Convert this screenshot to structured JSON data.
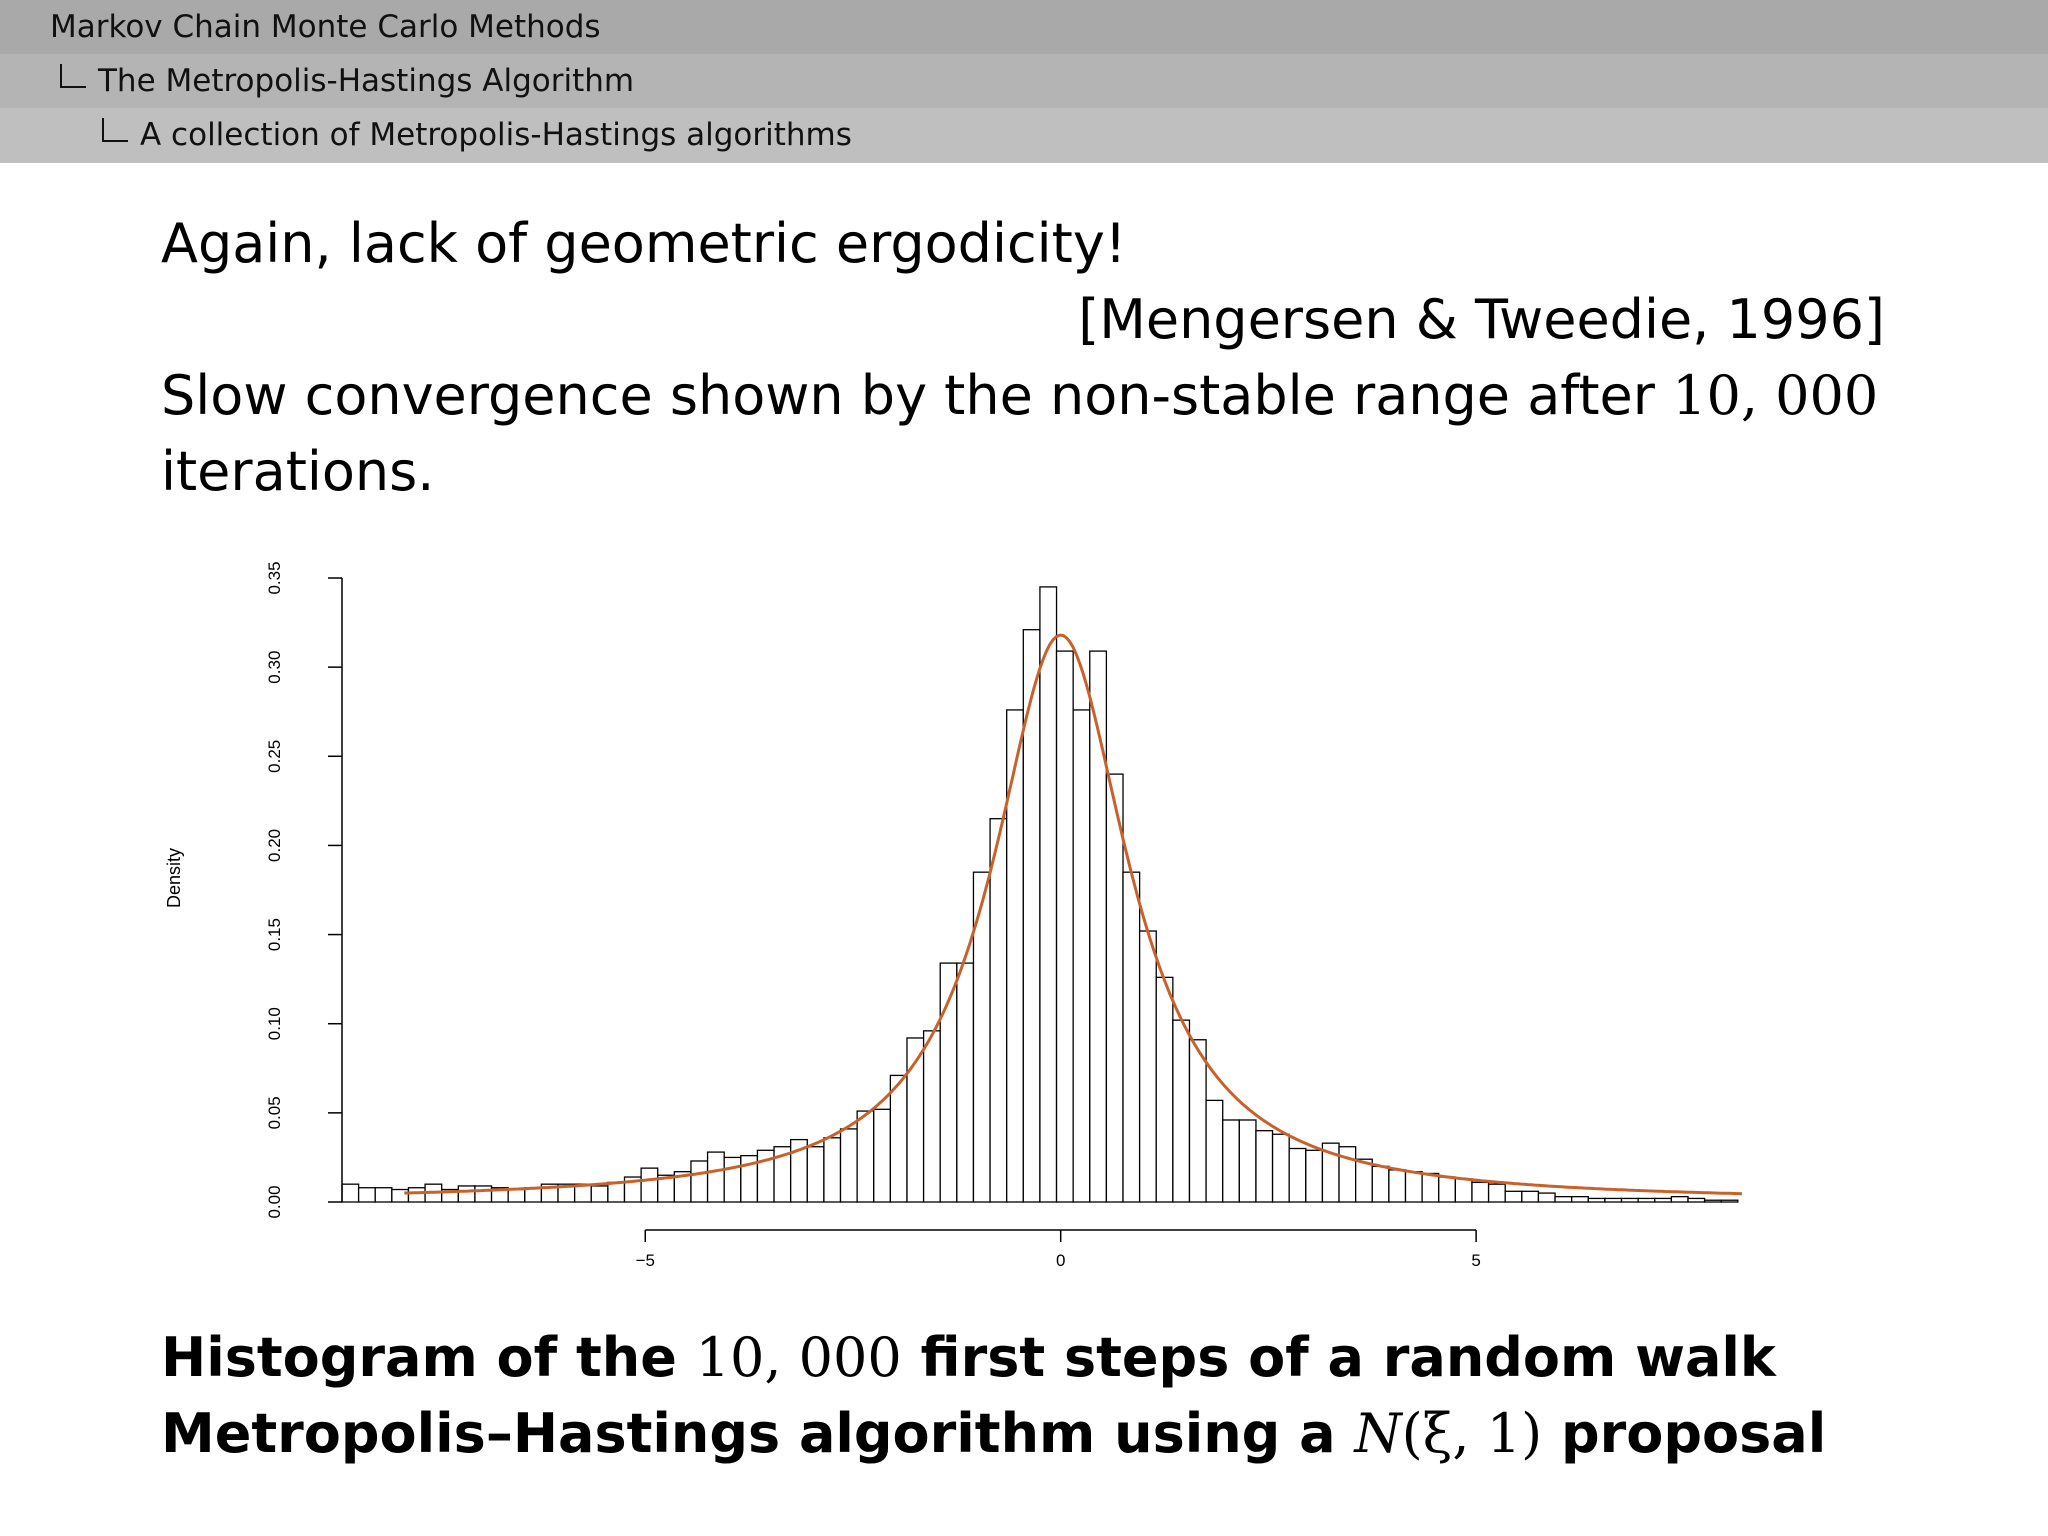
{
  "header": {
    "level1": "Markov Chain Monte Carlo Methods",
    "level2": "The Metropolis-Hastings Algorithm",
    "level3": "A collection of Metropolis-Hastings algorithms"
  },
  "body": {
    "line1": "Again, lack of geometric ergodicity!",
    "citation": "[Mengersen & Tweedie, 1996]",
    "line3_pre": "Slow convergence shown by the non-stable range after ",
    "line3_num": "10, 000",
    "line4": "iterations."
  },
  "caption": {
    "line1_pre": "Histogram of the ",
    "line1_num": "10, 000",
    "line1_post": " first steps of a random walk",
    "line2_pre": "Metropolis–Hastings algorithm using a ",
    "line2_sym": "N",
    "line2_args": "(ξ, 1)",
    "line2_post": " proposal"
  },
  "colors": {
    "curve": "#c8622a",
    "bars": "#000000"
  },
  "chart_data": {
    "type": "bar",
    "xlabel": "",
    "ylabel": "Density",
    "xlim": [
      -8.65,
      8.2
    ],
    "ylim": [
      0,
      0.35
    ],
    "x_ticks": [
      -5,
      0,
      5
    ],
    "x_tick_labels": [
      "−5",
      "0",
      "5"
    ],
    "y_ticks": [
      0,
      0.05,
      0.1,
      0.15,
      0.2,
      0.25,
      0.3,
      0.35
    ],
    "y_tick_labels": [
      "0.00",
      "0.05",
      "0.10",
      "0.15",
      "0.20",
      "0.25",
      "0.30",
      "0.35"
    ],
    "bin_start": -8.65,
    "bin_width": 0.2,
    "values": [
      0.01,
      0.008,
      0.008,
      0.007,
      0.008,
      0.01,
      0.007,
      0.009,
      0.009,
      0.008,
      0.007,
      0.008,
      0.01,
      0.01,
      0.01,
      0.009,
      0.011,
      0.014,
      0.019,
      0.015,
      0.017,
      0.023,
      0.028,
      0.025,
      0.026,
      0.029,
      0.031,
      0.035,
      0.031,
      0.036,
      0.041,
      0.051,
      0.052,
      0.071,
      0.092,
      0.096,
      0.134,
      0.134,
      0.185,
      0.215,
      0.276,
      0.321,
      0.345,
      0.309,
      0.276,
      0.309,
      0.24,
      0.185,
      0.152,
      0.126,
      0.102,
      0.091,
      0.057,
      0.046,
      0.046,
      0.04,
      0.038,
      0.03,
      0.029,
      0.033,
      0.031,
      0.024,
      0.02,
      0.018,
      0.017,
      0.016,
      0.014,
      0.013,
      0.011,
      0.01,
      0.006,
      0.006,
      0.005,
      0.003,
      0.003,
      0.002,
      0.002,
      0.002,
      0.002,
      0.002,
      0.003,
      0.002,
      0.001,
      0.001
    ],
    "series": [
      {
        "type": "line",
        "values_desc": "density curve",
        "peak_x": 0,
        "peak_y": 0.318
      }
    ],
    "grid": false,
    "legend": "none"
  }
}
